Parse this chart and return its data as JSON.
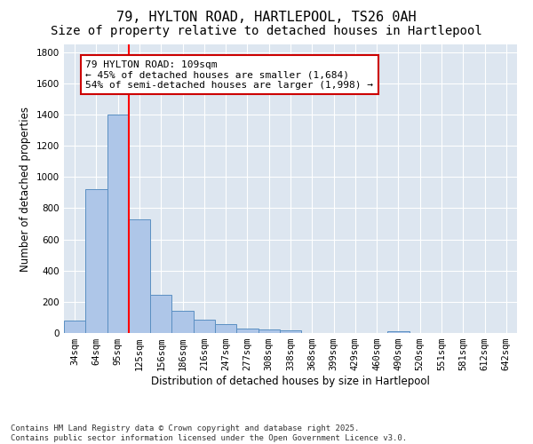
{
  "title": "79, HYLTON ROAD, HARTLEPOOL, TS26 0AH",
  "subtitle": "Size of property relative to detached houses in Hartlepool",
  "xlabel": "Distribution of detached houses by size in Hartlepool",
  "ylabel": "Number of detached properties",
  "categories": [
    "34sqm",
    "64sqm",
    "95sqm",
    "125sqm",
    "156sqm",
    "186sqm",
    "216sqm",
    "247sqm",
    "277sqm",
    "308sqm",
    "338sqm",
    "368sqm",
    "399sqm",
    "429sqm",
    "460sqm",
    "490sqm",
    "520sqm",
    "551sqm",
    "581sqm",
    "612sqm",
    "642sqm"
  ],
  "values": [
    80,
    920,
    1400,
    730,
    245,
    140,
    85,
    55,
    30,
    25,
    15,
    0,
    0,
    0,
    0,
    10,
    0,
    0,
    0,
    0,
    0
  ],
  "bar_color": "#aec6e8",
  "bar_edge_color": "#5a8fc2",
  "red_line_x": 2.5,
  "annotation_text": "79 HYLTON ROAD: 109sqm\n← 45% of detached houses are smaller (1,684)\n54% of semi-detached houses are larger (1,998) →",
  "annotation_box_color": "#ffffff",
  "annotation_box_edge": "#cc0000",
  "ylim": [
    0,
    1850
  ],
  "yticks": [
    0,
    200,
    400,
    600,
    800,
    1000,
    1200,
    1400,
    1600,
    1800
  ],
  "bg_color": "#dde6f0",
  "grid_color": "#ffffff",
  "footer": "Contains HM Land Registry data © Crown copyright and database right 2025.\nContains public sector information licensed under the Open Government Licence v3.0.",
  "title_fontsize": 11,
  "subtitle_fontsize": 10,
  "axis_label_fontsize": 8.5,
  "tick_fontsize": 7.5,
  "annotation_fontsize": 8,
  "footer_fontsize": 6.5
}
